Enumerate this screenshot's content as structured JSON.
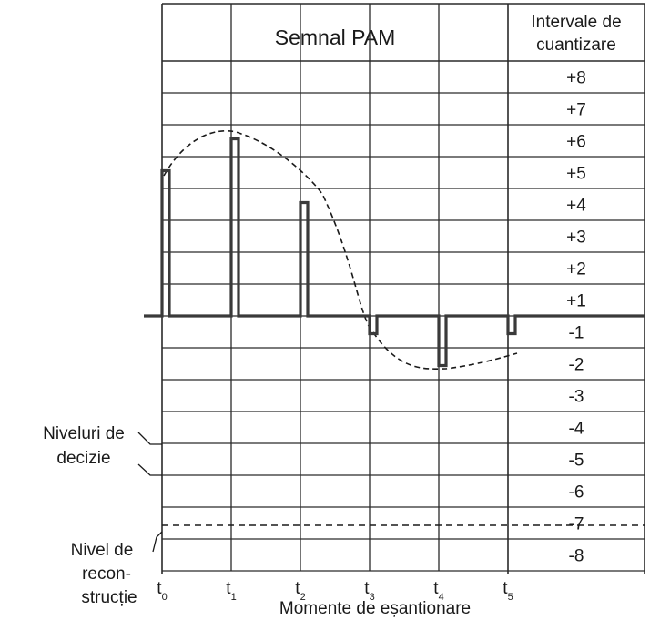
{
  "header": {
    "title": "Semnal PAM",
    "intervals_line1": "Intervale de",
    "intervals_line2": "cuantizare"
  },
  "levels": [
    "+8",
    "+7",
    "+6",
    "+5",
    "+4",
    "+3",
    "+2",
    "+1",
    "-1",
    "-2",
    "-3",
    "-4",
    "-5",
    "-6",
    "-7",
    "-8"
  ],
  "side_labels": {
    "decision_line1": "Niveluri de",
    "decision_line2": "decizie",
    "reconstruction_line1": "Nivel de",
    "reconstruction_line2": "recon-",
    "reconstruction_line3": "strucție"
  },
  "sampling": {
    "ticks": [
      {
        "base": "t",
        "sub": "0"
      },
      {
        "base": "t",
        "sub": "1"
      },
      {
        "base": "t",
        "sub": "2"
      },
      {
        "base": "t",
        "sub": "3"
      },
      {
        "base": "t",
        "sub": "4"
      },
      {
        "base": "t",
        "sub": "5"
      }
    ],
    "axis_title": "Momente de eșantionare",
    "sample_levels": [
      "+5",
      "+6",
      "+4",
      "-1",
      "-2",
      "-1"
    ]
  },
  "colors": {
    "line": "#2a2a2a",
    "signal": "#3a3a3a",
    "background": "#ffffff"
  }
}
